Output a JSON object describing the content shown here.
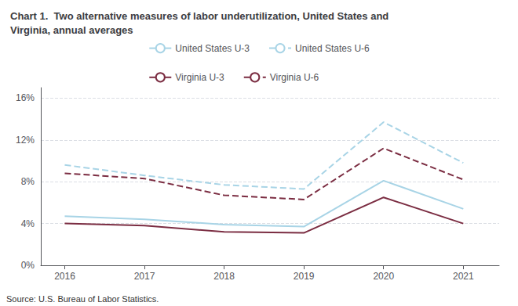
{
  "chart_data": {
    "type": "line",
    "title": "Chart 1.  Two alternative measures of labor underutilization, United States and\nVirginia, annual averages",
    "annotations": [
      "Source: U.S. Bureau of Labor Statistics."
    ],
    "x": [
      2016,
      2017,
      2018,
      2019,
      2020,
      2021
    ],
    "xlim": [
      2015.7,
      2021.45
    ],
    "xticks": [
      2016,
      2017,
      2018,
      2019,
      2020,
      2021
    ],
    "ylim": [
      0,
      17
    ],
    "yticks": [
      {
        "value": 0,
        "label": "0%"
      },
      {
        "value": 4,
        "label": "4%"
      },
      {
        "value": 8,
        "label": "8%"
      },
      {
        "value": 12,
        "label": "12%"
      },
      {
        "value": 16,
        "label": "16%"
      }
    ],
    "grid": true,
    "legend": "top",
    "series": [
      {
        "name": "United States U-3",
        "color": "#a8d4e6",
        "line_style": "solid",
        "values": [
          4.7,
          4.4,
          3.9,
          3.7,
          8.1,
          5.4
        ]
      },
      {
        "name": "United States U-6",
        "color": "#a8d4e6",
        "line_style": "dashed",
        "values": [
          9.6,
          8.6,
          7.7,
          7.3,
          13.7,
          9.8
        ]
      },
      {
        "name": "Virginia U-3",
        "color": "#7b2d42",
        "line_style": "solid",
        "values": [
          4.0,
          3.8,
          3.2,
          3.1,
          6.5,
          4.0
        ]
      },
      {
        "name": "Virginia U-6",
        "color": "#7b2d42",
        "line_style": "dashed",
        "values": [
          8.8,
          8.3,
          6.7,
          6.3,
          11.2,
          8.2
        ]
      }
    ]
  }
}
